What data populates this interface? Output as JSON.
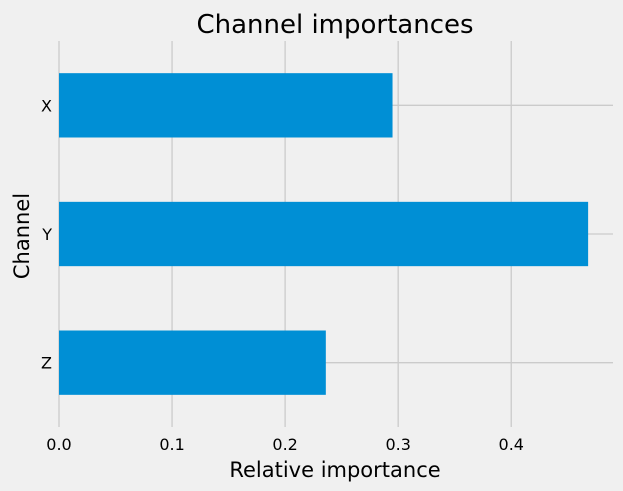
{
  "chart_data": {
    "type": "bar",
    "orientation": "horizontal",
    "title": "Channel importances",
    "xlabel": "Relative importance",
    "ylabel": "Channel",
    "categories": [
      "X",
      "Y",
      "Z"
    ],
    "values": [
      0.295,
      0.468,
      0.236
    ],
    "xlim": [
      0.0,
      0.49
    ],
    "xticks": [
      "0.0",
      "0.1",
      "0.2",
      "0.3",
      "0.4"
    ],
    "grid": true,
    "legend": "none",
    "bar_color": "#008fd5",
    "background_color": "#f0f0f0",
    "grid_color": "#cbcbcb"
  }
}
